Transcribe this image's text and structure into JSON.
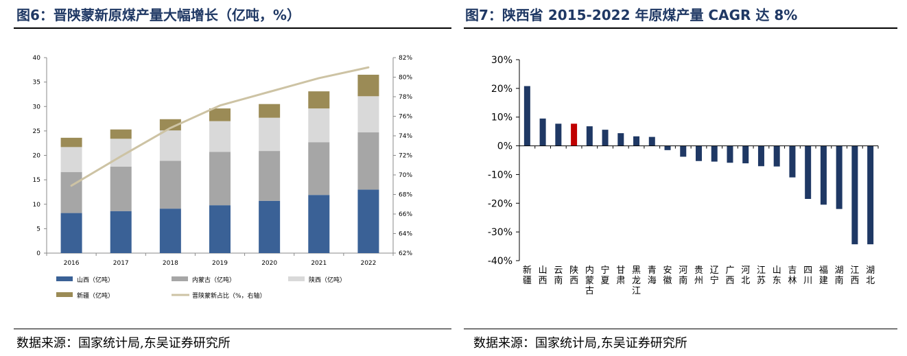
{
  "left": {
    "title": "图6：晋陕蒙新原煤产量大幅增长（亿吨，%）",
    "source": "数据来源：国家统计局,东吴证券研究所",
    "chart_data": {
      "type": "bar",
      "stacked": true,
      "categories": [
        "2016",
        "2017",
        "2018",
        "2019",
        "2020",
        "2021",
        "2022"
      ],
      "series": [
        {
          "name": "山西（亿吨）",
          "color": "#3a6196",
          "values": [
            8.2,
            8.6,
            9.1,
            9.8,
            10.7,
            11.9,
            13.0
          ]
        },
        {
          "name": "内蒙古（亿吨）",
          "color": "#a6a6a6",
          "values": [
            8.4,
            9.1,
            9.8,
            10.9,
            10.2,
            10.8,
            11.7
          ]
        },
        {
          "name": "陕西（亿吨）",
          "color": "#d9d9d9",
          "values": [
            5.1,
            5.7,
            6.2,
            6.3,
            6.8,
            6.9,
            7.4
          ]
        },
        {
          "name": "新疆（亿吨）",
          "color": "#9b8b56",
          "values": [
            1.9,
            1.9,
            2.3,
            2.6,
            2.8,
            3.5,
            4.4
          ]
        }
      ],
      "line": {
        "name": "晋陕蒙新占比（%，右轴）",
        "color": "#cdc3a4",
        "axis": "right",
        "values": [
          68.9,
          71.9,
          74.8,
          77.1,
          78.5,
          79.9,
          81.0
        ]
      },
      "ylim": [
        0,
        40
      ],
      "yticks": [
        0,
        5,
        10,
        15,
        20,
        25,
        30,
        35,
        40
      ],
      "y2lim": [
        62,
        82
      ],
      "y2ticks": [
        "62%",
        "64%",
        "66%",
        "68%",
        "70%",
        "72%",
        "74%",
        "76%",
        "78%",
        "80%",
        "82%"
      ],
      "grid": false,
      "legend_position": "bottom"
    }
  },
  "right": {
    "title": "图7：陕西省 2015-2022 年原煤产量 CAGR 达 8%",
    "source": "数据来源：国家统计局,东吴证券研究所",
    "chart_data": {
      "type": "bar",
      "categories": [
        "新疆",
        "山西",
        "云南",
        "陕西",
        "内蒙古",
        "宁夏",
        "甘肃",
        "黑龙江",
        "青海",
        "安徽",
        "河南",
        "贵州",
        "辽宁",
        "广西",
        "河北",
        "江苏",
        "山东",
        "吉林",
        "四川",
        "福建",
        "湖南",
        "江西",
        "湖北"
      ],
      "values": [
        20.8,
        9.5,
        7.7,
        7.7,
        6.8,
        5.6,
        4.4,
        3.3,
        3.1,
        -1.5,
        -3.8,
        -5.3,
        -5.5,
        -5.9,
        -6.1,
        -7.1,
        -7.2,
        -11.0,
        -18.5,
        -20.5,
        -22.0,
        -34.3,
        -34.3
      ],
      "highlight": "陕西",
      "bar_color": "#1f3864",
      "highlight_color": "#c00000",
      "ylim": [
        -40,
        30
      ],
      "yticks": [
        "-40%",
        "-30%",
        "-20%",
        "-10%",
        "0%",
        "10%",
        "20%",
        "30%"
      ],
      "grid": false,
      "legend": false
    }
  }
}
